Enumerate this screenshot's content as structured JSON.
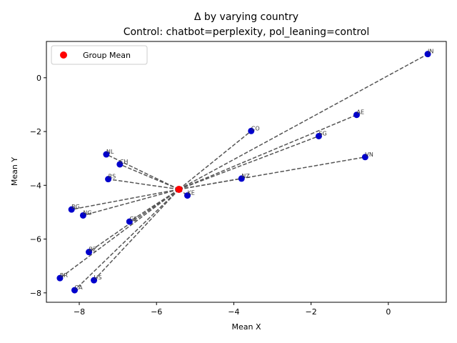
{
  "chart_data": {
    "type": "scatter",
    "title": "Δ by varying country",
    "subtitle": "Control: chatbot=perplexity, pol_leaning=control",
    "xlabel": "Mean X",
    "ylabel": "Mean Y",
    "xlim": [
      -8.85,
      1.5
    ],
    "ylim": [
      -8.35,
      1.35
    ],
    "xticks": [
      -8,
      -6,
      -4,
      -2,
      0
    ],
    "yticks": [
      -8,
      -6,
      -4,
      -2,
      0
    ],
    "xtick_labels": [
      "−8",
      "−6",
      "−4",
      "−2",
      "0"
    ],
    "ytick_labels": [
      "−8",
      "−6",
      "−4",
      "−2",
      "0"
    ],
    "grid": false,
    "legend": {
      "position": "top-left",
      "entries": [
        {
          "label": "Group Mean",
          "color": "#ff0000"
        }
      ]
    },
    "group_mean": {
      "x": -5.42,
      "y": -4.15,
      "color": "#ff0000"
    },
    "point_color": "#0000cc",
    "line_color": "#555555",
    "points": [
      {
        "label": "IN",
        "x": 1.02,
        "y": 0.88
      },
      {
        "label": "AE",
        "x": -0.82,
        "y": -1.38
      },
      {
        "label": "SG",
        "x": -1.8,
        "y": -2.17
      },
      {
        "label": "CO",
        "x": -3.55,
        "y": -1.98
      },
      {
        "label": "VN",
        "x": -0.6,
        "y": -2.95
      },
      {
        "label": "NZ",
        "x": -3.8,
        "y": -3.75
      },
      {
        "label": "NL",
        "x": -7.3,
        "y": -2.85
      },
      {
        "label": "CH",
        "x": -6.95,
        "y": -3.22
      },
      {
        "label": "RS",
        "x": -7.25,
        "y": -3.77
      },
      {
        "label": "KE",
        "x": -5.2,
        "y": -4.38
      },
      {
        "label": "BG",
        "x": -8.2,
        "y": -4.9
      },
      {
        "label": "NG",
        "x": -7.9,
        "y": -5.12
      },
      {
        "label": "GE",
        "x": -6.7,
        "y": -5.35
      },
      {
        "label": "BZ",
        "x": -7.75,
        "y": -6.48
      },
      {
        "label": "BR",
        "x": -8.5,
        "y": -7.45
      },
      {
        "label": "US",
        "x": -7.62,
        "y": -7.53
      },
      {
        "label": "CA",
        "x": -8.12,
        "y": -7.9
      }
    ]
  }
}
